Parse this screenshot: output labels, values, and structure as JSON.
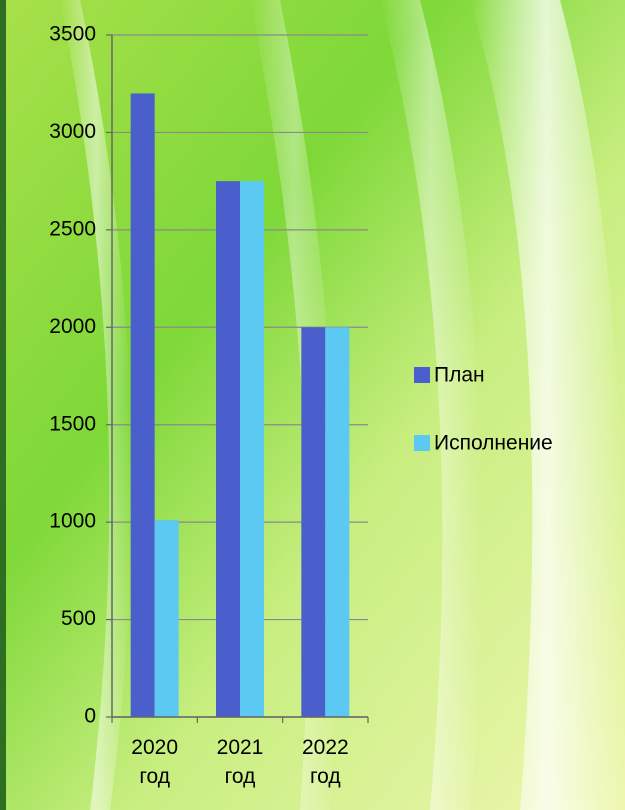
{
  "chart_data": {
    "type": "bar",
    "categories": [
      "2020 год",
      "2021 год",
      "2022 год"
    ],
    "series": [
      {
        "name": "План",
        "color": "#4a5fcb",
        "values": [
          3200,
          2750,
          2000
        ]
      },
      {
        "name": "Исполнение",
        "color": "#5bc9f2",
        "values": [
          1010,
          2750,
          2000
        ]
      }
    ],
    "ylim": [
      0,
      3500
    ],
    "yticks": [
      0,
      500,
      1000,
      1500,
      2000,
      2500,
      3000,
      3500
    ],
    "grid": true,
    "legend": "right"
  }
}
